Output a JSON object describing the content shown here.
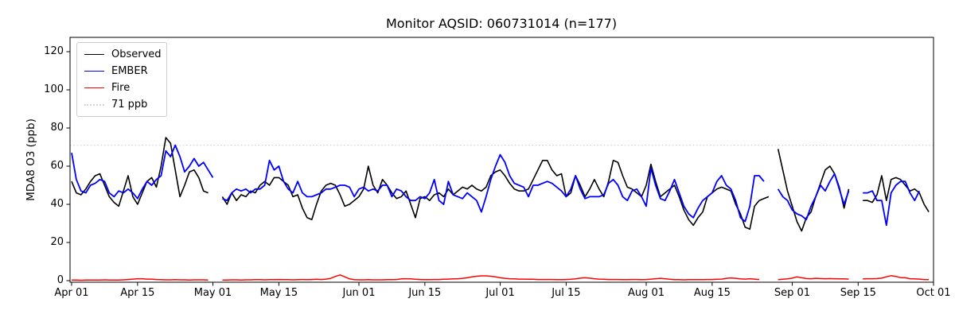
{
  "figure": {
    "background": "#ffffff"
  },
  "chart_data": {
    "type": "line",
    "title": "Monitor AQSID: 060731014 (n=177)",
    "ylabel": "MDA8 O3 (ppb)",
    "xlabel": "",
    "grid": false,
    "legend_position": "upper-left",
    "x_axis": {
      "unit": "days since Apr 01",
      "ticks": [
        {
          "day": 0,
          "label": "Apr 01"
        },
        {
          "day": 14,
          "label": "Apr 15"
        },
        {
          "day": 30,
          "label": "May 01"
        },
        {
          "day": 44,
          "label": "May 15"
        },
        {
          "day": 61,
          "label": "Jun 01"
        },
        {
          "day": 75,
          "label": "Jun 15"
        },
        {
          "day": 91,
          "label": "Jul 01"
        },
        {
          "day": 105,
          "label": "Jul 15"
        },
        {
          "day": 122,
          "label": "Aug 01"
        },
        {
          "day": 136,
          "label": "Aug 15"
        },
        {
          "day": 153,
          "label": "Sep 01"
        },
        {
          "day": 167,
          "label": "Sep 15"
        },
        {
          "day": 183,
          "label": "Oct 01"
        }
      ]
    },
    "y_axis": {
      "ticks": [
        0,
        20,
        40,
        60,
        80,
        100,
        120
      ],
      "lim": [
        -1,
        127.5
      ]
    },
    "threshold": {
      "label": "71 ppb",
      "value": 71,
      "color": "#d3d3d3",
      "style": "dotted"
    },
    "series": [
      {
        "name": "Observed",
        "color": "#000000",
        "style": "solid",
        "width": 1.6,
        "values": [
          52,
          46,
          45,
          48,
          52,
          55,
          56,
          50,
          44,
          41,
          39,
          47,
          55,
          44,
          40,
          46,
          52,
          54,
          49,
          60,
          75,
          72,
          58,
          44,
          50,
          57,
          58,
          54,
          47,
          46,
          null,
          null,
          44,
          40,
          46,
          42,
          45,
          44,
          47,
          46,
          50,
          52,
          50,
          54,
          54,
          52,
          50,
          44,
          45,
          38,
          33,
          32,
          40,
          47,
          50,
          51,
          50,
          45,
          39,
          40,
          42,
          44,
          48,
          60,
          50,
          46,
          53,
          50,
          46,
          43,
          44,
          47,
          40,
          33,
          43,
          44,
          42,
          45,
          46,
          44,
          48,
          45,
          47,
          49,
          48,
          50,
          48,
          47,
          49,
          55,
          57,
          58,
          55,
          51,
          48,
          47,
          47,
          48,
          53,
          58,
          63,
          63,
          58,
          55,
          56,
          44,
          46,
          55,
          50,
          44,
          48,
          53,
          48,
          44,
          52,
          63,
          62,
          55,
          49,
          48,
          46,
          44,
          50,
          61,
          52,
          44,
          46,
          48,
          50,
          44,
          37,
          32,
          29,
          33,
          36,
          44,
          46,
          48,
          49,
          48,
          47,
          40,
          35,
          28,
          27,
          39,
          42,
          43,
          44,
          null,
          69,
          58,
          47,
          39,
          31,
          26,
          33,
          36,
          44,
          51,
          58,
          60,
          56,
          49,
          38,
          48,
          null,
          null,
          42,
          42,
          41,
          45,
          55,
          42,
          53,
          54,
          53,
          50,
          47,
          48,
          46,
          40,
          36
        ]
      },
      {
        "name": "EMBER",
        "color": "#0000ff",
        "style": "solid",
        "width": 1.8,
        "values": [
          67,
          53,
          47,
          46,
          50,
          51,
          53,
          52,
          46,
          44,
          47,
          46,
          48,
          46,
          43,
          48,
          52,
          50,
          53,
          55,
          68,
          65,
          71,
          65,
          57,
          60,
          64,
          60,
          62,
          58,
          54,
          null,
          43,
          42,
          46,
          48,
          47,
          48,
          46,
          48,
          48,
          50,
          63,
          58,
          60,
          52,
          48,
          46,
          52,
          46,
          44,
          44,
          45,
          46,
          48,
          48,
          49,
          50,
          50,
          49,
          44,
          48,
          49,
          47,
          48,
          47,
          50,
          50,
          44,
          48,
          47,
          44,
          42,
          42,
          44,
          43,
          46,
          53,
          42,
          40,
          52,
          45,
          44,
          43,
          46,
          44,
          42,
          36,
          44,
          53,
          60,
          66,
          62,
          55,
          51,
          50,
          49,
          44,
          50,
          50,
          51,
          52,
          51,
          49,
          47,
          44,
          48,
          55,
          48,
          43,
          44,
          44,
          44,
          45,
          51,
          53,
          50,
          44,
          42,
          47,
          48,
          44,
          39,
          59,
          50,
          43,
          42,
          47,
          53,
          46,
          39,
          35,
          33,
          38,
          42,
          44,
          46,
          52,
          55,
          50,
          48,
          42,
          33,
          31,
          39,
          55,
          55,
          52,
          null,
          null,
          48,
          44,
          42,
          37,
          35,
          34,
          32,
          39,
          44,
          50,
          47,
          52,
          56,
          48,
          40,
          47,
          null,
          null,
          46,
          46,
          47,
          42,
          42,
          29,
          46,
          50,
          52,
          52,
          46,
          42,
          47,
          null,
          null
        ]
      },
      {
        "name": "Fire",
        "color": "#ff0000",
        "style": "solid",
        "width": 1.5,
        "values": [
          0.3,
          0.3,
          0.2,
          0.3,
          0.3,
          0.3,
          0.3,
          0.4,
          0.3,
          0.3,
          0.3,
          0.4,
          0.6,
          0.8,
          1.0,
          1.0,
          0.8,
          0.8,
          0.6,
          0.5,
          0.4,
          0.4,
          0.5,
          0.4,
          0.4,
          0.3,
          0.4,
          0.4,
          0.4,
          0.3,
          null,
          null,
          0.3,
          0.3,
          0.4,
          0.4,
          0.3,
          0.4,
          0.4,
          0.5,
          0.5,
          0.4,
          0.5,
          0.5,
          0.6,
          0.5,
          0.5,
          0.4,
          0.5,
          0.6,
          0.5,
          0.6,
          0.7,
          0.6,
          0.8,
          1.2,
          2.2,
          3.0,
          2.0,
          0.9,
          0.5,
          0.4,
          0.4,
          0.5,
          0.4,
          0.4,
          0.4,
          0.5,
          0.5,
          0.6,
          0.9,
          1.0,
          0.9,
          0.7,
          0.6,
          0.5,
          0.5,
          0.6,
          0.6,
          0.7,
          0.8,
          0.9,
          1.0,
          1.2,
          1.5,
          2.0,
          2.3,
          2.5,
          2.5,
          2.3,
          2.0,
          1.5,
          1.2,
          1.0,
          0.9,
          0.8,
          0.8,
          0.7,
          0.7,
          0.6,
          0.6,
          0.6,
          0.6,
          0.5,
          0.5,
          0.6,
          0.7,
          0.9,
          1.3,
          1.5,
          1.3,
          1.0,
          0.8,
          0.7,
          0.6,
          0.6,
          0.6,
          0.5,
          0.5,
          0.6,
          0.6,
          0.5,
          0.6,
          0.8,
          1.0,
          1.2,
          1.0,
          0.7,
          0.5,
          0.5,
          0.4,
          0.5,
          0.5,
          0.5,
          0.5,
          0.6,
          0.6,
          0.7,
          0.8,
          1.2,
          1.4,
          1.2,
          0.9,
          0.8,
          1.0,
          0.8,
          0.6,
          null,
          null,
          null,
          0.5,
          0.7,
          0.9,
          1.3,
          2.0,
          1.5,
          1.1,
          1.0,
          1.2,
          1.1,
          1.0,
          1.1,
          1.0,
          0.9,
          0.9,
          0.8,
          null,
          null,
          0.9,
          1.0,
          1.0,
          1.1,
          1.3,
          2.0,
          2.6,
          2.2,
          1.6,
          1.5,
          1.0,
          0.9,
          0.8,
          0.6,
          0.5
        ]
      }
    ]
  }
}
